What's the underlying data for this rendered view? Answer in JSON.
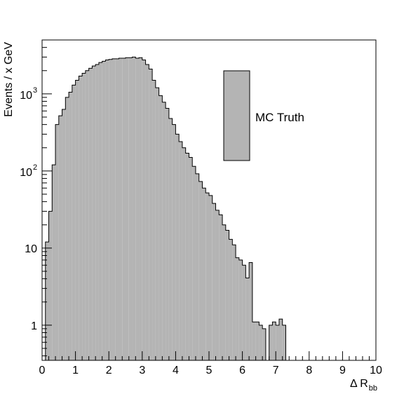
{
  "chart_data": {
    "type": "bar",
    "title": "",
    "xlabel": "Δ R",
    "xlabel_subscript": "bb",
    "ylabel": "Events / x GeV",
    "x_scale": "linear",
    "y_scale": "log",
    "xlim": [
      0,
      10
    ],
    "ylim": [
      0.35,
      5000
    ],
    "x_ticks": [
      0,
      1,
      2,
      3,
      4,
      5,
      6,
      7,
      8,
      9,
      10
    ],
    "x_tick_labels": [
      "0",
      "1",
      "2",
      "3",
      "4",
      "5",
      "6",
      "7",
      "8",
      "9",
      "10"
    ],
    "y_ticks": [
      {
        "value": 1,
        "label": "1",
        "exp": ""
      },
      {
        "value": 10,
        "label": "10",
        "exp": ""
      },
      {
        "value": 100,
        "label": "10",
        "exp": "2"
      },
      {
        "value": 1000,
        "label": "10",
        "exp": "3"
      }
    ],
    "grid": false,
    "legend_position": "top-right",
    "fill_color": "#b4b4b4",
    "line_color": "#000000",
    "series": [
      {
        "name": "MC Truth",
        "bin_width": 0.1,
        "bin_start": 0,
        "values": [
          0.35,
          12,
          30,
          120,
          400,
          520,
          630,
          900,
          1050,
          1300,
          1500,
          1700,
          1850,
          2000,
          2150,
          2300,
          2400,
          2550,
          2650,
          2750,
          2800,
          2850,
          2850,
          2900,
          2900,
          2950,
          2950,
          3000,
          2900,
          2950,
          2750,
          2400,
          2100,
          1500,
          1200,
          950,
          780,
          650,
          480,
          400,
          300,
          240,
          200,
          170,
          150,
          115,
          92,
          73,
          60,
          52,
          48,
          38,
          31,
          27,
          20,
          17,
          13,
          11,
          7.5,
          7,
          6,
          4.1,
          6.5,
          1.1,
          1.1,
          1.0,
          0.9,
          0,
          1.0,
          1.1,
          1.0,
          1.2,
          1.0,
          0.35,
          0.35,
          0.35,
          0.35,
          0.35,
          0.35,
          0.35,
          0.35,
          0.35,
          0.35,
          0.35,
          0.35,
          0.35,
          0.35,
          0.35,
          0.35,
          0.35,
          0.35,
          0.35,
          0.35,
          0.35,
          0.35,
          0.35,
          0.35,
          0.35,
          0.35,
          0.35
        ]
      }
    ]
  }
}
